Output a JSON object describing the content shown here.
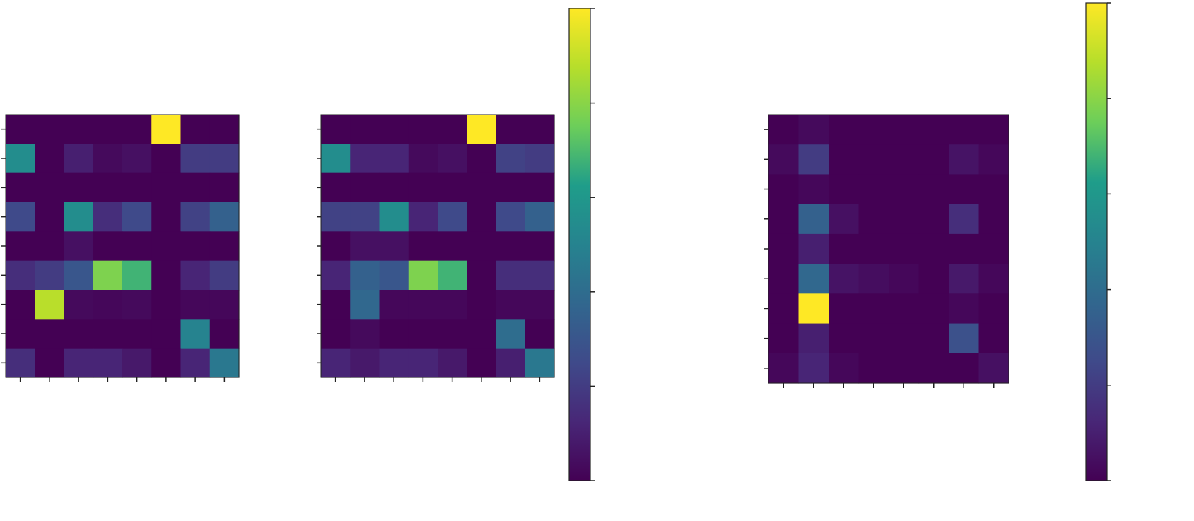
{
  "chart_data": [
    {
      "type": "heatmap",
      "title": "",
      "xlabel": "",
      "ylabel": "",
      "colormap": "viridis",
      "value_range": [
        0,
        1
      ],
      "rows": 9,
      "cols": 8,
      "values": [
        [
          0.0,
          0.0,
          0.0,
          0.0,
          0.0,
          1.0,
          0.0,
          0.0
        ],
        [
          0.55,
          0.0,
          0.1,
          0.03,
          0.05,
          0.0,
          0.2,
          0.2
        ],
        [
          0.0,
          0.0,
          0.0,
          0.0,
          0.0,
          0.0,
          0.0,
          0.0
        ],
        [
          0.25,
          0.0,
          0.55,
          0.15,
          0.25,
          0.0,
          0.22,
          0.35
        ],
        [
          0.0,
          0.0,
          0.05,
          0.0,
          0.0,
          0.0,
          0.0,
          0.0
        ],
        [
          0.15,
          0.2,
          0.3,
          0.78,
          0.68,
          0.0,
          0.12,
          0.2
        ],
        [
          0.0,
          0.88,
          0.03,
          0.02,
          0.03,
          0.0,
          0.02,
          0.02
        ],
        [
          0.0,
          0.0,
          0.0,
          0.0,
          0.0,
          0.0,
          0.5,
          0.0
        ],
        [
          0.15,
          0.0,
          0.12,
          0.12,
          0.08,
          0.0,
          0.12,
          0.45
        ]
      ]
    },
    {
      "type": "heatmap",
      "title": "",
      "xlabel": "",
      "ylabel": "",
      "colormap": "viridis",
      "value_range": [
        0,
        1
      ],
      "rows": 9,
      "cols": 8,
      "values": [
        [
          0.0,
          0.0,
          0.0,
          0.0,
          0.0,
          1.0,
          0.0,
          0.0
        ],
        [
          0.55,
          0.12,
          0.12,
          0.03,
          0.05,
          0.0,
          0.22,
          0.2
        ],
        [
          0.0,
          0.0,
          0.0,
          0.0,
          0.0,
          0.0,
          0.0,
          0.0
        ],
        [
          0.22,
          0.22,
          0.55,
          0.12,
          0.25,
          0.0,
          0.25,
          0.35
        ],
        [
          0.0,
          0.05,
          0.05,
          0.0,
          0.0,
          0.0,
          0.0,
          0.0
        ],
        [
          0.12,
          0.35,
          0.3,
          0.78,
          0.68,
          0.0,
          0.15,
          0.15
        ],
        [
          0.0,
          0.38,
          0.02,
          0.02,
          0.02,
          0.0,
          0.02,
          0.02
        ],
        [
          0.0,
          0.03,
          0.0,
          0.0,
          0.0,
          0.0,
          0.4,
          0.0
        ],
        [
          0.12,
          0.08,
          0.12,
          0.12,
          0.08,
          0.0,
          0.1,
          0.45
        ]
      ]
    },
    {
      "type": "heatmap",
      "title": "",
      "xlabel": "",
      "ylabel": "",
      "colormap": "viridis",
      "value_range": [
        0,
        1
      ],
      "rows": 9,
      "cols": 8,
      "values": [
        [
          0.0,
          0.03,
          0.0,
          0.0,
          0.0,
          0.0,
          0.0,
          0.0
        ],
        [
          0.03,
          0.2,
          0.0,
          0.0,
          0.0,
          0.0,
          0.06,
          0.02
        ],
        [
          0.0,
          0.02,
          0.0,
          0.0,
          0.0,
          0.0,
          0.0,
          0.0
        ],
        [
          0.0,
          0.35,
          0.05,
          0.0,
          0.0,
          0.0,
          0.15,
          0.0
        ],
        [
          0.0,
          0.1,
          0.0,
          0.0,
          0.0,
          0.0,
          0.0,
          0.0
        ],
        [
          0.0,
          0.38,
          0.06,
          0.04,
          0.02,
          0.0,
          0.08,
          0.02
        ],
        [
          0.0,
          1.0,
          0.0,
          0.0,
          0.0,
          0.0,
          0.02,
          0.0
        ],
        [
          0.0,
          0.1,
          0.0,
          0.0,
          0.0,
          0.0,
          0.28,
          0.0
        ],
        [
          0.02,
          0.12,
          0.02,
          0.0,
          0.0,
          0.0,
          0.0,
          0.05
        ]
      ]
    }
  ],
  "colorbars": [
    {
      "colormap": "viridis",
      "range": [
        0,
        1
      ],
      "tick_count": 6
    },
    {
      "colormap": "viridis",
      "range": [
        0,
        1
      ],
      "tick_count": 6
    }
  ],
  "colors": {
    "frame": "#222222",
    "viridis_stops": [
      "#440154",
      "#482777",
      "#3f4a8a",
      "#31678e",
      "#26838f",
      "#1f9d8a",
      "#6cce5a",
      "#b6de2b",
      "#fee825"
    ]
  }
}
